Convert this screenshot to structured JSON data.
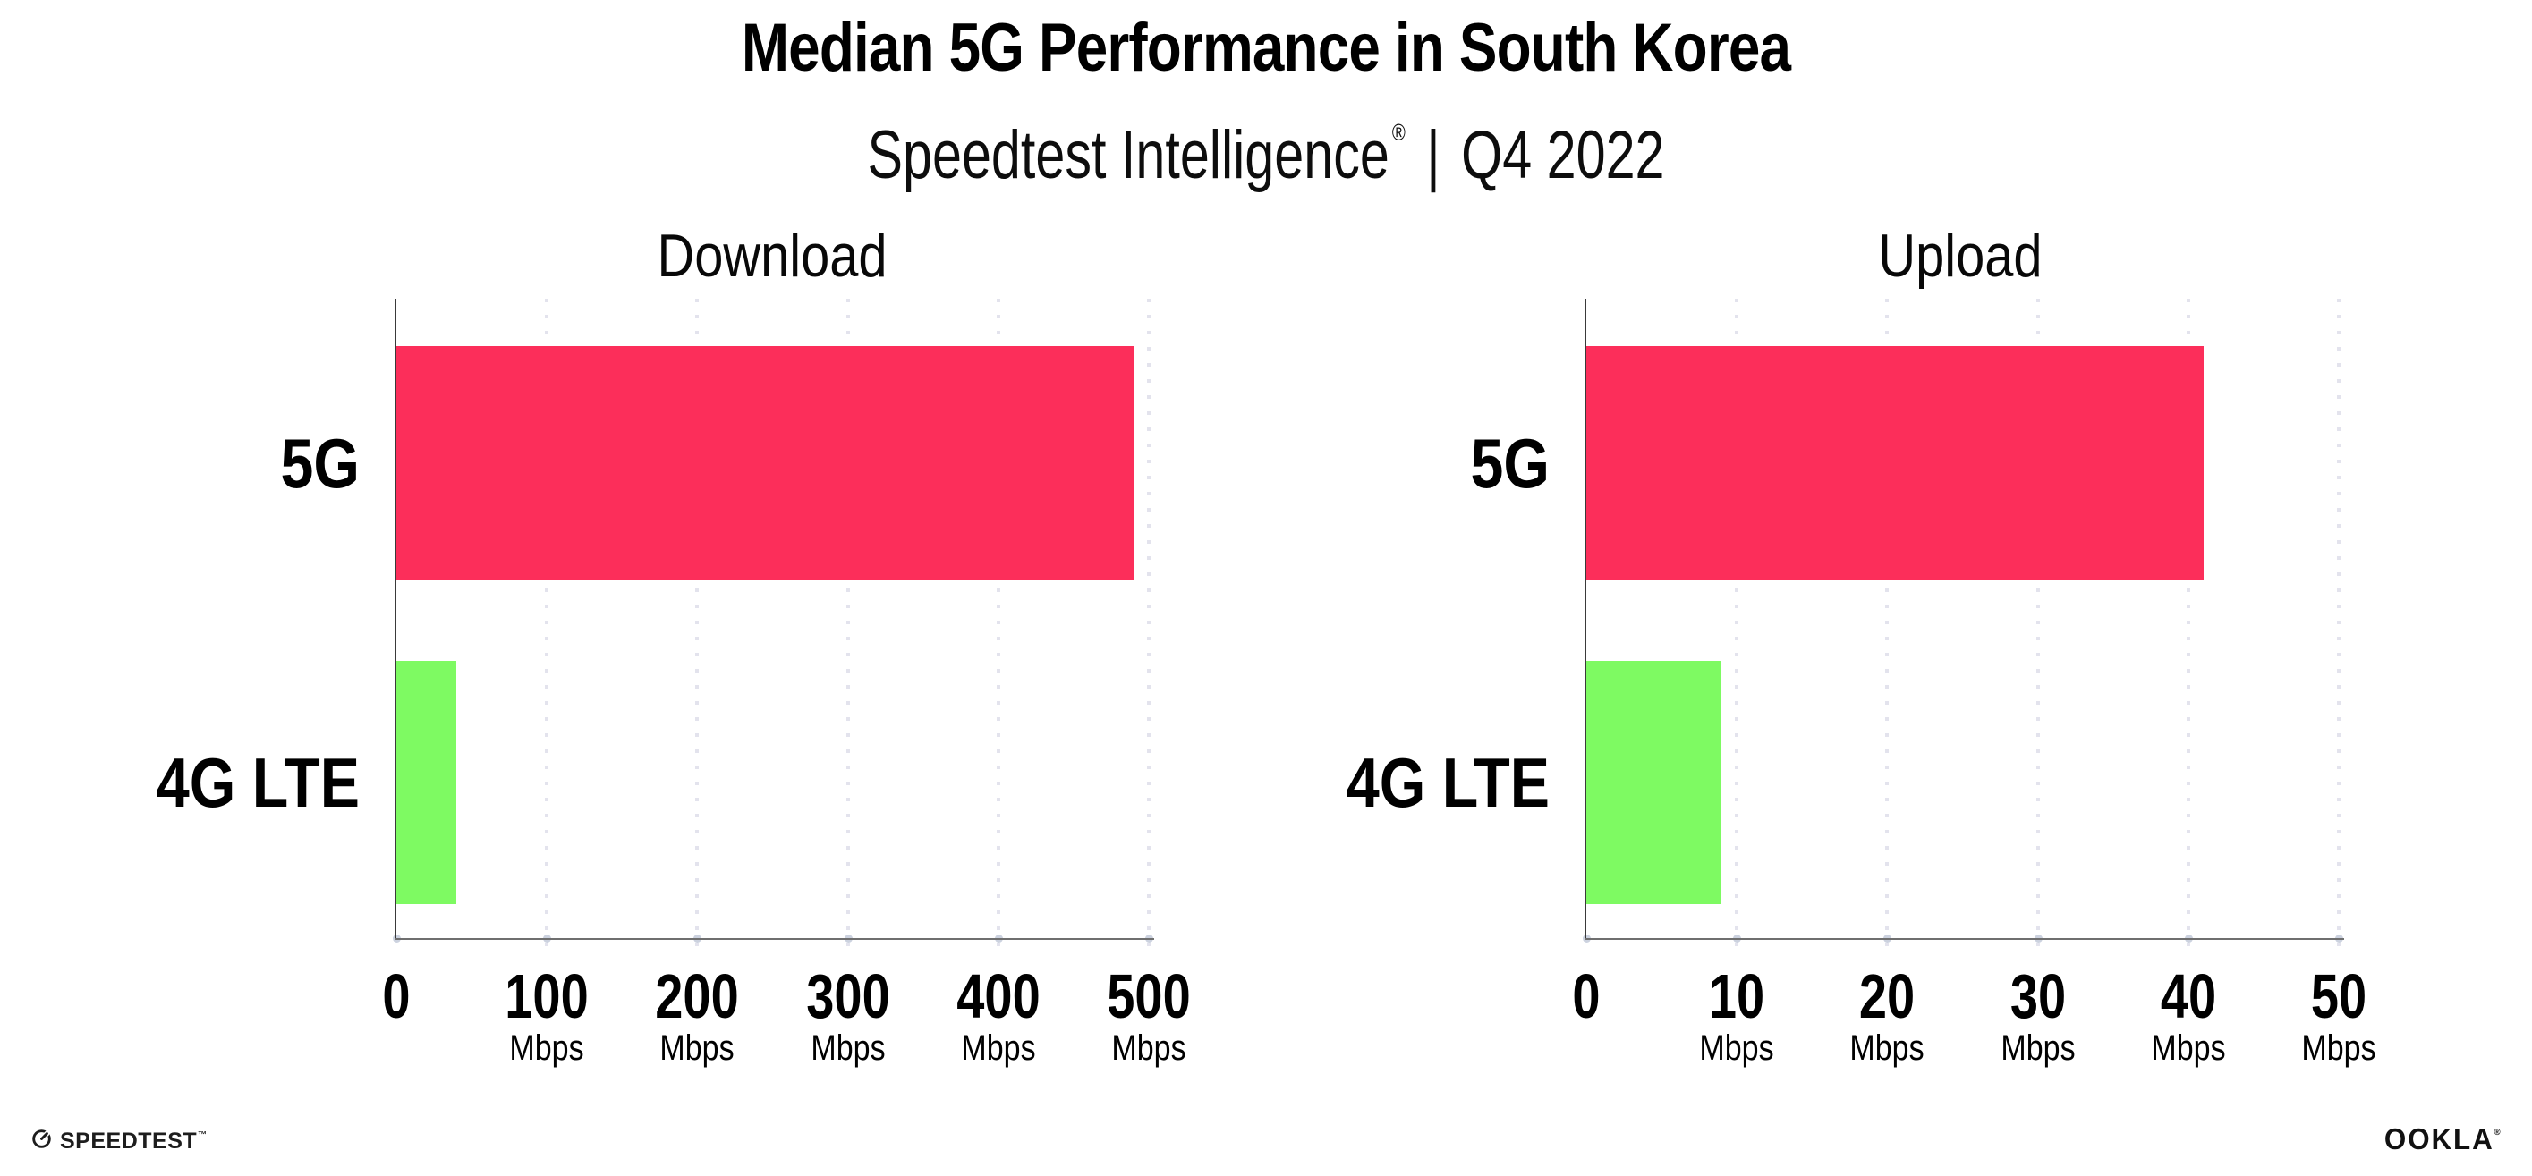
{
  "header": {
    "title": "Median 5G Performance in South Korea",
    "brand": "Speedtest Intelligence",
    "registered_mark": "®",
    "divider": "|",
    "period": "Q4 2022"
  },
  "chart_data": [
    {
      "type": "bar",
      "orientation": "horizontal",
      "title": "Download",
      "categories": [
        "5G",
        "4G LTE"
      ],
      "values": [
        490,
        40
      ],
      "unit": "Mbps",
      "xlim": [
        0,
        500
      ],
      "xticks": [
        0,
        100,
        200,
        300,
        400,
        500
      ],
      "tick_unit_label": "Mbps",
      "bar_colors": [
        "#FC2E5A",
        "#7EFA62"
      ],
      "grid": "dotted vertical gridlines",
      "legend": "none"
    },
    {
      "type": "bar",
      "orientation": "horizontal",
      "title": "Upload",
      "categories": [
        "5G",
        "4G LTE"
      ],
      "values": [
        41,
        9
      ],
      "unit": "Mbps",
      "xlim": [
        0,
        50
      ],
      "xticks": [
        0,
        10,
        20,
        30,
        40,
        50
      ],
      "tick_unit_label": "Mbps",
      "bar_colors": [
        "#FC2E5A",
        "#7EFA62"
      ],
      "grid": "dotted vertical gridlines",
      "legend": "none"
    }
  ],
  "footer": {
    "speedtest_logo_text": "SPEEDTEST",
    "speedtest_trademark": "™",
    "ookla_logo_text": "OOKLA",
    "ookla_registered": "®"
  },
  "colors": {
    "bar_5g": "#FC2E5A",
    "bar_4g_lte": "#7EFA62",
    "gridline": "#E3E3ED",
    "y_axis": "#3A3A3A",
    "x_axis": "#6F6F6F",
    "axis_tick_dot": "#CCD2DF",
    "text": "#000000",
    "background": "#FFFFFF"
  }
}
